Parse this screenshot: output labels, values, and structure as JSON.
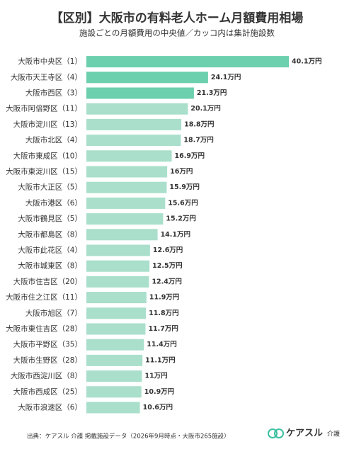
{
  "chart_data": {
    "type": "bar",
    "orientation": "horizontal",
    "title": "【区別】大阪市の有料老人ホーム月額費用相場",
    "subtitle": "施設ごとの月額費用の中央値／カッコ内は集計施設数",
    "categories": [
      "大阪市中央区（1）",
      "大阪市天王寺区（4）",
      "大阪市西区（3）",
      "大阪市阿倍野区（11）",
      "大阪市淀川区（13）",
      "大阪市北区（4）",
      "大阪市東成区（10）",
      "大阪市東淀川区（15）",
      "大阪市大正区（5）",
      "大阪市港区（6）",
      "大阪市鶴見区（5）",
      "大阪市都島区（8）",
      "大阪市此花区（4）",
      "大阪市城東区（8）",
      "大阪市住吉区（20）",
      "大阪市住之江区（11）",
      "大阪市旭区（7）",
      "大阪市東住吉区（28）",
      "大阪市平野区（35）",
      "大阪市生野区（28）",
      "大阪市西淀川区（8）",
      "大阪市西成区（25）",
      "大阪市浪速区（6）"
    ],
    "values": [
      40.1,
      24.1,
      21.3,
      20.1,
      18.8,
      18.7,
      16.9,
      16,
      15.9,
      15.6,
      15.2,
      14.1,
      12.6,
      12.5,
      12.4,
      11.9,
      11.8,
      11.7,
      11.4,
      11.1,
      11,
      10.9,
      10.6
    ],
    "value_labels": [
      "40.1万円",
      "24.1万円",
      "21.3万円",
      "20.1万円",
      "18.8万円",
      "18.7万円",
      "16.9万円",
      "16万円",
      "15.9万円",
      "15.6万円",
      "15.2万円",
      "14.1万円",
      "12.6万円",
      "12.5万円",
      "12.4万円",
      "11.9万円",
      "11.8万円",
      "11.7万円",
      "11.4万円",
      "11.1万円",
      "11万円",
      "10.9万円",
      "10.6万円"
    ],
    "colors": [
      "#6ccfae",
      "#6ccfae",
      "#6ccfae",
      "#a9dfcb",
      "#a9dfcb",
      "#a9dfcb",
      "#a9dfcb",
      "#a9dfcb",
      "#a9dfcb",
      "#a9dfcb",
      "#a9dfcb",
      "#a9dfcb",
      "#a9dfcb",
      "#a9dfcb",
      "#a9dfcb",
      "#a9dfcb",
      "#a9dfcb",
      "#a9dfcb",
      "#a9dfcb",
      "#a9dfcb",
      "#a9dfcb",
      "#a9dfcb",
      "#a9dfcb"
    ],
    "xlim": [
      0,
      40.1
    ],
    "source": "出典：ケアスル 介護 掲載施設データ（2026年9月時点・大阪市265施設）",
    "logo": {
      "brand": "ケアスル",
      "suffix": "介護"
    }
  }
}
